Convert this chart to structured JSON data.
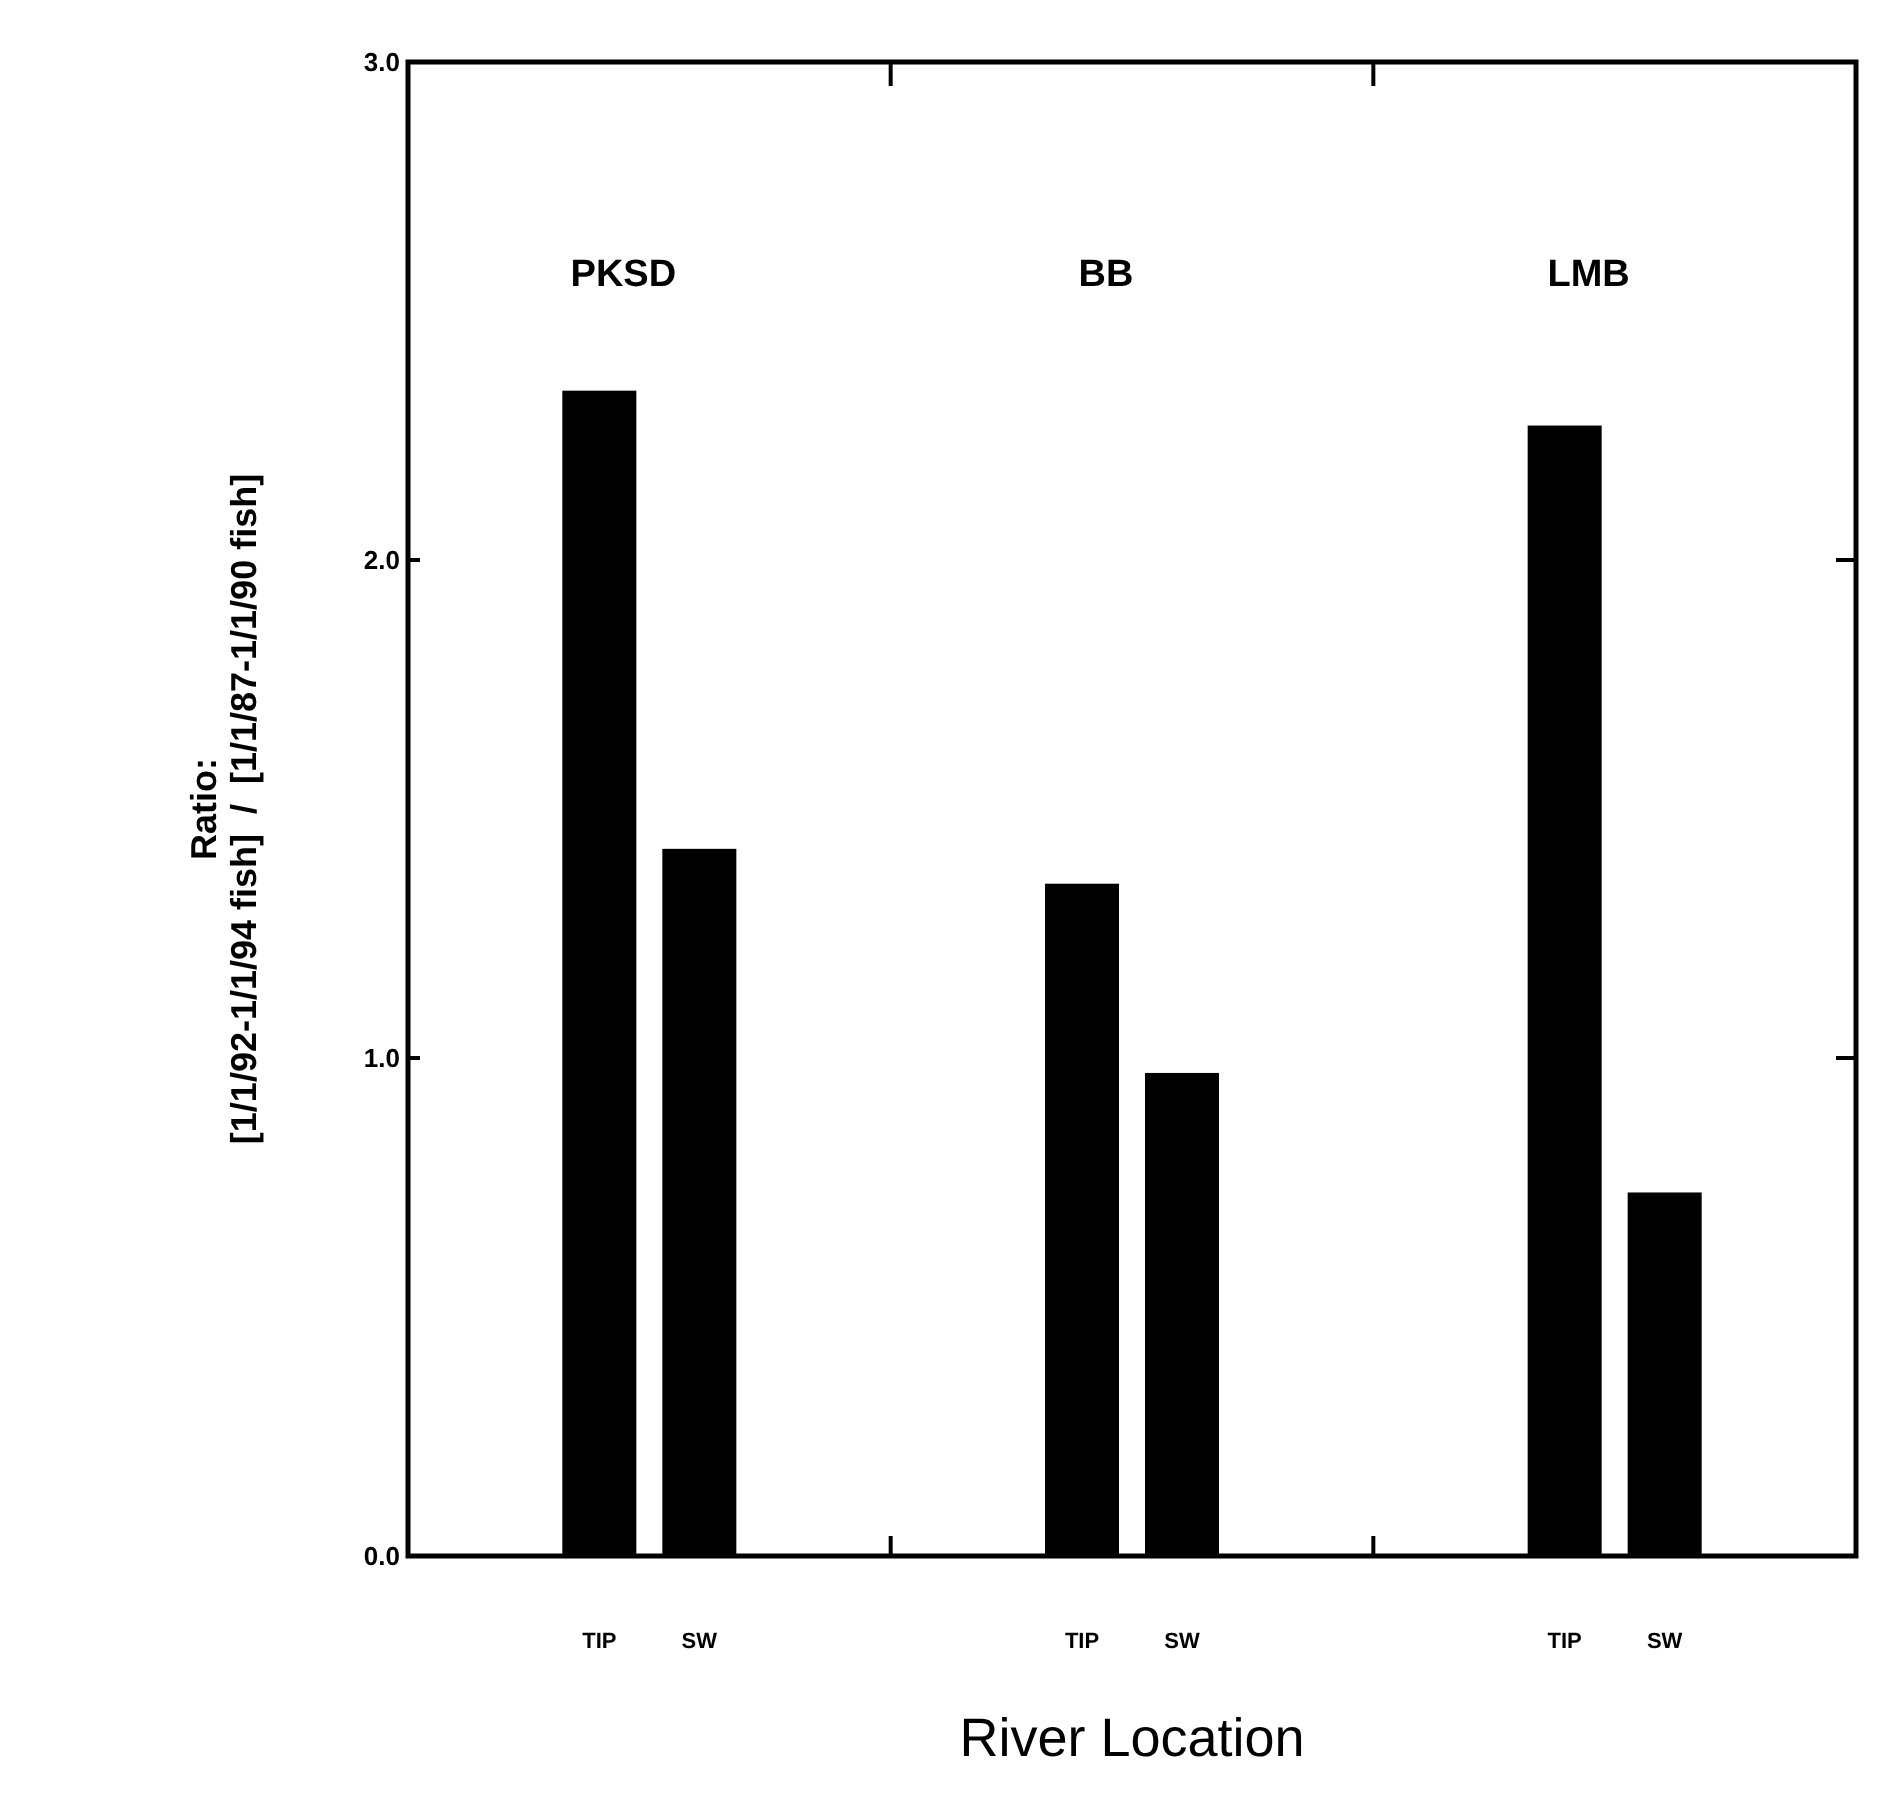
{
  "chart_data": {
    "type": "bar",
    "xlabel": "River Location",
    "ylabel": "Ratio:\n[1/1/92-1/1/94 fish]  /  [1/1/87-1/1/90 fish]",
    "categories": [
      "PKSD",
      "BB",
      "LMB"
    ],
    "series": [
      {
        "name": "TIP",
        "color": "#000000",
        "values": [
          2.34,
          1.35,
          2.27
        ]
      },
      {
        "name": "SW",
        "color": "#000000",
        "values": [
          1.42,
          0.97,
          0.73
        ]
      }
    ],
    "ylim": [
      0,
      3
    ],
    "yticks": [
      {
        "value": 0,
        "label": "0.0"
      },
      {
        "value": 1,
        "label": "1.0"
      },
      {
        "value": 2,
        "label": "2.0"
      },
      {
        "value": 3,
        "label": "3.0"
      }
    ],
    "grid": false
  }
}
